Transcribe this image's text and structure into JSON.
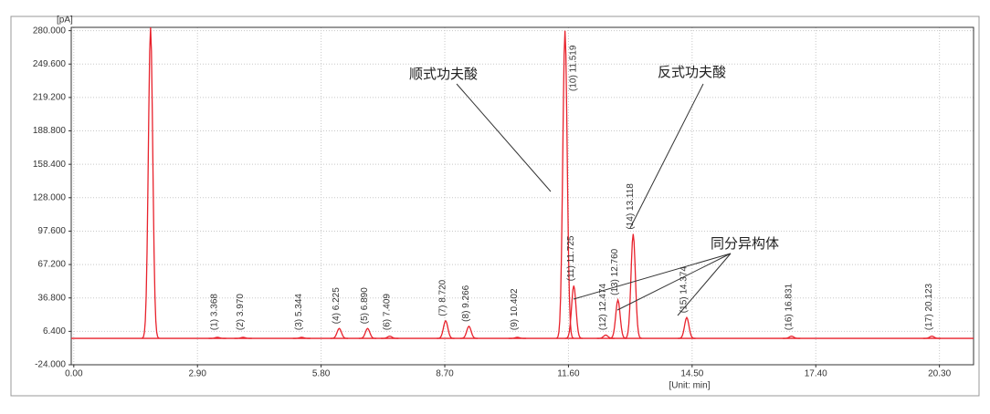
{
  "chart_data": {
    "type": "chromatogram",
    "y_unit": "[pA]",
    "x_label": "[Unit: min]",
    "x": [
      1.8,
      3.368,
      3.97,
      5.344,
      6.225,
      6.89,
      7.409,
      8.72,
      9.266,
      10.402,
      11.519,
      11.725,
      12.474,
      12.76,
      13.118,
      14.374,
      16.831,
      20.123
    ],
    "values": [
      283,
      1,
      1,
      1,
      9,
      9,
      2,
      16,
      11,
      1,
      280,
      48,
      3,
      35,
      95,
      19,
      2,
      2
    ],
    "peak_labels": [
      null,
      "(1) 3.368",
      "(2) 3.970",
      "(3) 5.344",
      "(4) 6.225",
      "(5) 6.890",
      "(6) 7.409",
      "(7) 8.720",
      "(8) 9.266",
      "(9) 10.402",
      "(10) 11.519",
      "(11) 11.725",
      "(12) 12.474",
      "(13) 12.760",
      "(14) 13.118",
      "(15) 14.374",
      "(16) 16.831",
      "(17) 20.123"
    ],
    "color": "#e8222c",
    "xlim": [
      -0.06,
      21.1
    ],
    "ylim": [
      -24,
      283
    ],
    "xticks": [
      {
        "value": 0,
        "label": "0.00"
      },
      {
        "value": 2.9,
        "label": "2.90"
      },
      {
        "value": 5.8,
        "label": "5.80"
      },
      {
        "value": 8.7,
        "label": "8.70"
      },
      {
        "value": 11.6,
        "label": "11.60"
      },
      {
        "value": 14.5,
        "label": "14.50"
      },
      {
        "value": 17.4,
        "label": "17.40"
      },
      {
        "value": 20.3,
        "label": "20.30"
      }
    ],
    "yticks": [
      {
        "value": 280,
        "label": "280.000"
      },
      {
        "value": 249.6,
        "label": "249.600"
      },
      {
        "value": 219.2,
        "label": "219.200"
      },
      {
        "value": 188.8,
        "label": "188.800"
      },
      {
        "value": 158.4,
        "label": "158.400"
      },
      {
        "value": 128,
        "label": "128.000"
      },
      {
        "value": 97.6,
        "label": "97.600"
      },
      {
        "value": 67.2,
        "label": "67.200"
      },
      {
        "value": 36.8,
        "label": "36.800"
      },
      {
        "value": 6.4,
        "label": "6.400"
      },
      {
        "value": -24,
        "label": "-24.000"
      }
    ],
    "grid": true,
    "annotations": [
      "顺式功夫酸",
      "反式功夫酸",
      "同分异构体"
    ]
  }
}
